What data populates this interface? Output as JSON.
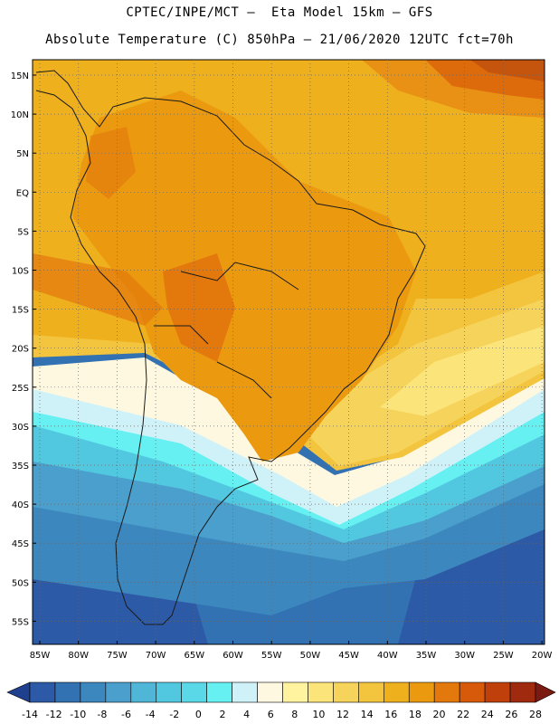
{
  "header": {
    "line1": "CPTEC/INPE/MCT –  Eta Model 15km – GFS",
    "line2": "Absolute Temperature (C) 850hPa – 21/06/2020 12UTC fct=70h"
  },
  "axes": {
    "lat_labels": [
      "15N",
      "10N",
      "5N",
      "EQ",
      "5S",
      "10S",
      "15S",
      "20S",
      "25S",
      "30S",
      "35S",
      "40S",
      "45S",
      "50S",
      "55S"
    ],
    "lon_labels": [
      "85W",
      "80W",
      "75W",
      "70W",
      "65W",
      "60W",
      "55W",
      "50W",
      "45W",
      "40W",
      "35W",
      "30W",
      "25W",
      "20W"
    ]
  },
  "colorbar": {
    "labels": [
      "-14",
      "-12",
      "-10",
      "-8",
      "-6",
      "-4",
      "-2",
      "0",
      "2",
      "4",
      "6",
      "8",
      "10",
      "12",
      "14",
      "16",
      "18",
      "20",
      "22",
      "24",
      "26",
      "28"
    ],
    "colors": [
      "#1f3f8f",
      "#2d5aa6",
      "#3271b2",
      "#3d87bf",
      "#4a9fcc",
      "#4fb6d8",
      "#52c8e0",
      "#5ad8e8",
      "#66f0f2",
      "#cff2f8",
      "#fff8e0",
      "#fff3a0",
      "#fbe47a",
      "#f6d35a",
      "#f3c43d",
      "#efb01e",
      "#eb9a10",
      "#e3780c",
      "#d65a0a",
      "#bf400b",
      "#a02a0e",
      "#7a1a10"
    ]
  },
  "map_colors": {
    "ocean_bg": "#3b86c0",
    "land_border": "#1a1a1a"
  }
}
